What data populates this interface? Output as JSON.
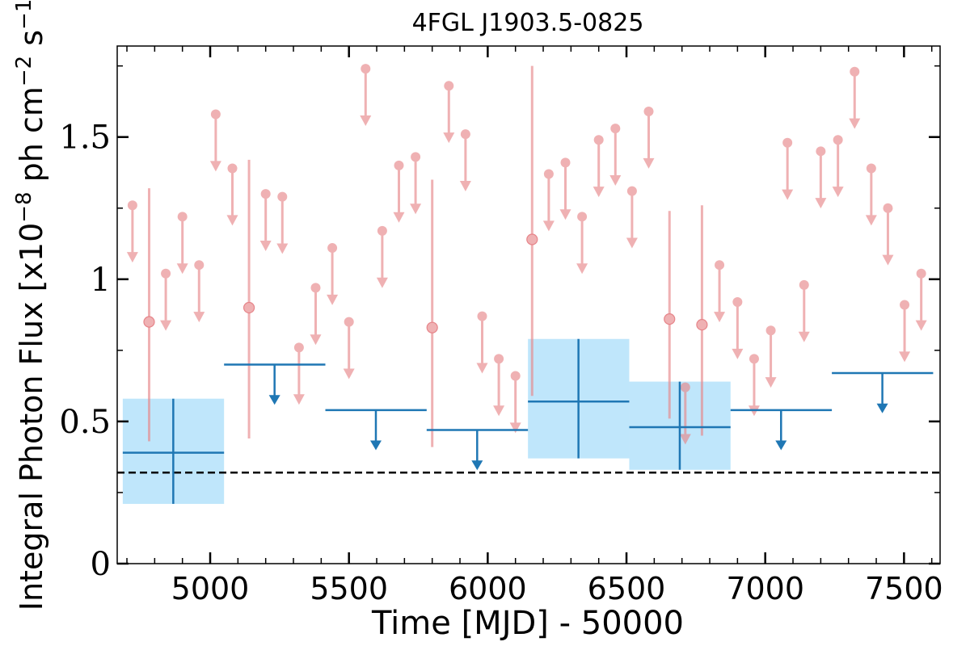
{
  "chart_data": {
    "type": "scatter",
    "title": "4FGL J1903.5-0825",
    "xlabel": "Time [MJD] - 50000",
    "ylabel_main": "Integral Photon Flux [x10",
    "ylabel_exp8": "−8",
    "ylabel_mid": " ph cm",
    "ylabel_exp2": "−2",
    "ylabel_mid2": " s",
    "ylabel_exp1": "−1",
    "ylabel_end": "]",
    "xlim": [
      4665,
      7630
    ],
    "ylim": [
      0,
      1.82
    ],
    "x_ticks": [
      {
        "value": 5000,
        "label": "5000"
      },
      {
        "value": 5500,
        "label": "5500"
      },
      {
        "value": 6000,
        "label": "6000"
      },
      {
        "value": 6500,
        "label": "6500"
      },
      {
        "value": 7000,
        "label": "7000"
      },
      {
        "value": 7500,
        "label": "7500"
      }
    ],
    "y_ticks": [
      {
        "value": 0,
        "label": "0"
      },
      {
        "value": 0.5,
        "label": "0.5"
      },
      {
        "value": 1,
        "label": "1"
      },
      {
        "value": 1.5,
        "label": "1.5"
      }
    ],
    "reference_level": 0.32,
    "colors": {
      "short_bins": "#e8888b",
      "long_bins": "#1f77b4",
      "uncertainty_box": "#bfe6fb",
      "reference_line": "#000000"
    },
    "long_bins": [
      {
        "x": 4867,
        "x_lo": 4685,
        "x_hi": 5050,
        "y": 0.39,
        "y_lo": 0.21,
        "y_hi": 0.58,
        "upper_limit": false
      },
      {
        "x": 5232,
        "x_lo": 5050,
        "x_hi": 5415,
        "y": 0.7,
        "upper_limit": true
      },
      {
        "x": 5597,
        "x_lo": 5415,
        "x_hi": 5780,
        "y": 0.54,
        "upper_limit": true
      },
      {
        "x": 5962,
        "x_lo": 5780,
        "x_hi": 6145,
        "y": 0.47,
        "upper_limit": true
      },
      {
        "x": 6327,
        "x_lo": 6145,
        "x_hi": 6510,
        "y": 0.57,
        "y_lo": 0.37,
        "y_hi": 0.79,
        "upper_limit": false
      },
      {
        "x": 6692,
        "x_lo": 6510,
        "x_hi": 6875,
        "y": 0.48,
        "y_lo": 0.33,
        "y_hi": 0.64,
        "upper_limit": false
      },
      {
        "x": 7057,
        "x_lo": 6875,
        "x_hi": 7240,
        "y": 0.54,
        "upper_limit": true
      },
      {
        "x": 7422,
        "x_lo": 7240,
        "x_hi": 7605,
        "y": 0.67,
        "upper_limit": true
      }
    ],
    "short_bins": [
      {
        "x": 4720,
        "y": 1.26,
        "upper_limit": true
      },
      {
        "x": 4780,
        "y": 0.85,
        "y_lo": 0.43,
        "y_hi": 1.32,
        "upper_limit": false
      },
      {
        "x": 4840,
        "y": 1.02,
        "upper_limit": true
      },
      {
        "x": 4900,
        "y": 1.22,
        "upper_limit": true
      },
      {
        "x": 4960,
        "y": 1.05,
        "upper_limit": true
      },
      {
        "x": 5020,
        "y": 1.58,
        "upper_limit": true
      },
      {
        "x": 5080,
        "y": 1.39,
        "upper_limit": true
      },
      {
        "x": 5140,
        "y": 0.9,
        "y_lo": 0.44,
        "y_hi": 1.42,
        "upper_limit": false
      },
      {
        "x": 5200,
        "y": 1.3,
        "upper_limit": true
      },
      {
        "x": 5260,
        "y": 1.29,
        "upper_limit": true
      },
      {
        "x": 5320,
        "y": 0.76,
        "upper_limit": true
      },
      {
        "x": 5380,
        "y": 0.97,
        "upper_limit": true
      },
      {
        "x": 5440,
        "y": 1.11,
        "upper_limit": true
      },
      {
        "x": 5500,
        "y": 0.85,
        "upper_limit": true
      },
      {
        "x": 5560,
        "y": 1.74,
        "upper_limit": true
      },
      {
        "x": 5620,
        "y": 1.17,
        "upper_limit": true
      },
      {
        "x": 5680,
        "y": 1.4,
        "upper_limit": true
      },
      {
        "x": 5740,
        "y": 1.43,
        "upper_limit": true
      },
      {
        "x": 5800,
        "y": 0.83,
        "y_lo": 0.41,
        "y_hi": 1.35,
        "upper_limit": false
      },
      {
        "x": 5860,
        "y": 1.68,
        "upper_limit": true
      },
      {
        "x": 5920,
        "y": 1.51,
        "upper_limit": true
      },
      {
        "x": 5980,
        "y": 0.87,
        "upper_limit": true
      },
      {
        "x": 6040,
        "y": 0.72,
        "upper_limit": true
      },
      {
        "x": 6100,
        "y": 0.66,
        "upper_limit": true
      },
      {
        "x": 6160,
        "y": 1.14,
        "y_lo": 0.59,
        "y_hi": 1.75,
        "upper_limit": false
      },
      {
        "x": 6220,
        "y": 1.37,
        "upper_limit": true
      },
      {
        "x": 6280,
        "y": 1.41,
        "upper_limit": true
      },
      {
        "x": 6340,
        "y": 1.22,
        "upper_limit": true
      },
      {
        "x": 6400,
        "y": 1.49,
        "upper_limit": true
      },
      {
        "x": 6460,
        "y": 1.53,
        "upper_limit": true
      },
      {
        "x": 6520,
        "y": 1.31,
        "upper_limit": true
      },
      {
        "x": 6580,
        "y": 1.59,
        "upper_limit": true
      },
      {
        "x": 6655,
        "y": 0.86,
        "y_lo": 0.51,
        "y_hi": 1.24,
        "upper_limit": false
      },
      {
        "x": 6712,
        "y": 0.62,
        "upper_limit": true
      },
      {
        "x": 6772,
        "y": 0.84,
        "y_lo": 0.45,
        "y_hi": 1.26,
        "upper_limit": false
      },
      {
        "x": 6835,
        "y": 1.05,
        "upper_limit": true
      },
      {
        "x": 6900,
        "y": 0.92,
        "upper_limit": true
      },
      {
        "x": 6960,
        "y": 0.72,
        "upper_limit": true
      },
      {
        "x": 7020,
        "y": 0.82,
        "upper_limit": true
      },
      {
        "x": 7080,
        "y": 1.48,
        "upper_limit": true
      },
      {
        "x": 7140,
        "y": 0.98,
        "upper_limit": true
      },
      {
        "x": 7200,
        "y": 1.45,
        "upper_limit": true
      },
      {
        "x": 7262,
        "y": 1.49,
        "upper_limit": true
      },
      {
        "x": 7322,
        "y": 1.73,
        "upper_limit": true
      },
      {
        "x": 7382,
        "y": 1.39,
        "upper_limit": true
      },
      {
        "x": 7442,
        "y": 1.25,
        "upper_limit": true
      },
      {
        "x": 7502,
        "y": 0.91,
        "upper_limit": true
      },
      {
        "x": 7562,
        "y": 1.02,
        "upper_limit": true
      }
    ]
  }
}
